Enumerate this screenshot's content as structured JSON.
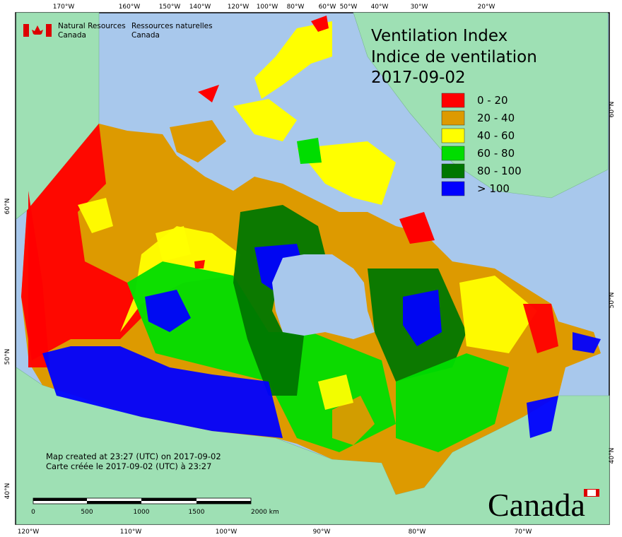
{
  "header": {
    "org_en": [
      "Natural Resources",
      "Canada"
    ],
    "org_fr": [
      "Ressources naturelles",
      "Canada"
    ]
  },
  "title": [
    "Ventilation Index",
    "Indice de ventilation",
    "2017-09-02"
  ],
  "legend": [
    {
      "label": "0 - 20",
      "color": "#ff0000"
    },
    {
      "label": "20 - 40",
      "color": "#dd9a00"
    },
    {
      "label": "40 - 60",
      "color": "#ffff00"
    },
    {
      "label": "60 - 80",
      "color": "#00dd00"
    },
    {
      "label": "80 - 100",
      "color": "#007700"
    },
    {
      "label": "> 100",
      "color": "#0000ff"
    }
  ],
  "graticule": {
    "top": [
      "170°W",
      "160°W",
      "150°W",
      "140°W",
      "120°W",
      "100°W",
      "80°W",
      "60°W",
      "50°W",
      "40°W",
      "30°W",
      "20°W"
    ],
    "bottom": [
      "120°W",
      "110°W",
      "100°W",
      "90°W",
      "80°W",
      "70°W"
    ],
    "left": [
      "60°N",
      "50°N",
      "40°N"
    ],
    "right": [
      "60°N",
      "50°N",
      "40°N"
    ]
  },
  "credits": [
    "Map created at 23:27 (UTC) on 2017-09-02",
    "Carte créée le 2017-09-02 (UTC) à 23:27"
  ],
  "scale_bar": [
    "0",
    "500",
    "1000",
    "1500",
    "2000 km"
  ],
  "wordmark": "Canada"
}
